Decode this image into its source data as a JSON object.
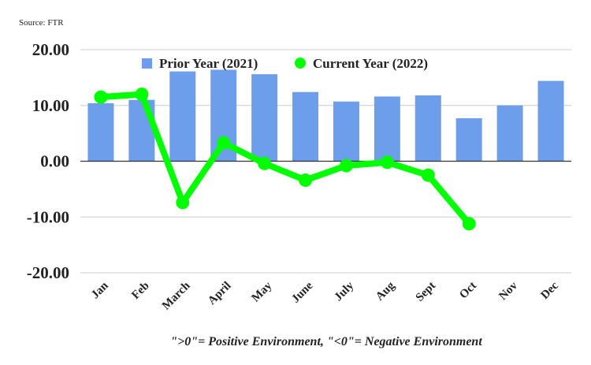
{
  "source_label": "Source: FTR",
  "footnote": "\">0\"= Positive Environment, \"<0\"= Negative Environment",
  "chart_data": {
    "type": "bar",
    "categories": [
      "Jan",
      "Feb",
      "March",
      "April",
      "May",
      "June",
      "July",
      "Aug",
      "Sept",
      "Oct",
      "Nov",
      "Dec"
    ],
    "series": [
      {
        "name": "Prior Year (2021)",
        "type": "bar",
        "color": "#6d9eeb",
        "values": [
          10.4,
          11.0,
          16.1,
          16.4,
          15.6,
          12.4,
          10.7,
          11.6,
          11.8,
          7.7,
          10.0,
          14.4
        ]
      },
      {
        "name": "Current Year (2022)",
        "type": "line",
        "color": "#00ff00",
        "values": [
          11.5,
          12.0,
          -7.4,
          3.3,
          -0.4,
          -3.4,
          -0.8,
          -0.2,
          -2.5,
          -11.2,
          null,
          null
        ]
      }
    ],
    "yticks": [
      "20.00",
      "10.00",
      "0.00",
      "-10.00",
      "-20.00"
    ],
    "ylim": [
      -20,
      20
    ],
    "grid": true,
    "legend_position": "top-center"
  }
}
